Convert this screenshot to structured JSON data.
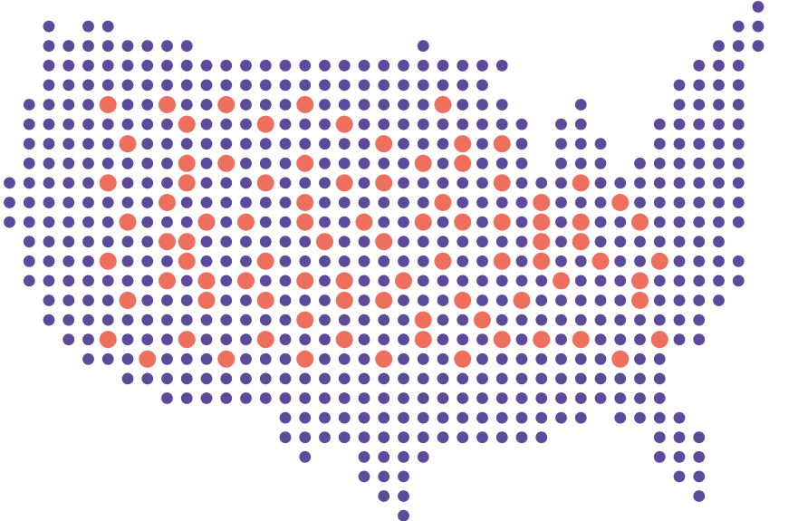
{
  "map": {
    "colors": {
      "base_dot": "#5e4a9b",
      "highlight_dot": "#ee6f5e",
      "background": "#ffffff"
    },
    "rows": [
      {
        "row": 0,
        "cells": [
          38
        ]
      },
      {
        "row": 1,
        "cells": [
          2,
          4,
          5,
          37,
          38
        ]
      },
      {
        "row": 2,
        "cells": [
          2,
          3,
          4,
          5,
          6,
          7,
          8,
          9,
          21,
          36,
          37,
          38
        ]
      },
      {
        "row": 3,
        "cells": [
          2,
          3,
          4,
          5,
          6,
          7,
          8,
          9,
          10,
          11,
          12,
          13,
          14,
          15,
          16,
          17,
          18,
          19,
          20,
          21,
          22,
          23,
          24,
          25,
          35,
          36,
          37
        ]
      },
      {
        "row": 4,
        "cells": [
          2,
          3,
          4,
          5,
          6,
          7,
          8,
          9,
          10,
          11,
          12,
          13,
          14,
          15,
          16,
          17,
          18,
          19,
          20,
          21,
          22,
          23,
          24,
          34,
          35,
          36,
          37
        ]
      },
      {
        "row": 5,
        "cells": [
          1,
          2,
          3,
          4,
          5,
          6,
          7,
          8,
          9,
          10,
          11,
          12,
          13,
          14,
          15,
          16,
          17,
          18,
          19,
          20,
          21,
          22,
          23,
          24,
          25,
          29,
          34,
          35,
          36,
          37
        ]
      },
      {
        "row": 6,
        "cells": [
          1,
          2,
          3,
          4,
          5,
          6,
          7,
          8,
          9,
          10,
          11,
          12,
          13,
          14,
          15,
          16,
          17,
          18,
          19,
          20,
          21,
          22,
          23,
          24,
          25,
          26,
          28,
          29,
          33,
          34,
          35,
          36,
          37
        ]
      },
      {
        "row": 7,
        "cells": [
          1,
          2,
          3,
          4,
          5,
          6,
          7,
          8,
          9,
          10,
          11,
          12,
          13,
          14,
          15,
          16,
          17,
          18,
          19,
          20,
          21,
          22,
          23,
          24,
          25,
          26,
          28,
          29,
          30,
          33,
          34,
          35,
          36,
          37
        ]
      },
      {
        "row": 8,
        "cells": [
          1,
          2,
          3,
          4,
          5,
          6,
          7,
          8,
          9,
          10,
          11,
          12,
          13,
          14,
          15,
          16,
          17,
          18,
          19,
          20,
          21,
          22,
          23,
          24,
          25,
          26,
          28,
          29,
          30,
          32,
          33,
          34,
          35,
          36,
          37
        ]
      },
      {
        "row": 9,
        "cells": [
          0,
          1,
          2,
          3,
          4,
          5,
          6,
          7,
          8,
          9,
          10,
          11,
          12,
          13,
          14,
          15,
          16,
          17,
          18,
          19,
          20,
          21,
          22,
          23,
          24,
          25,
          26,
          27,
          28,
          29,
          30,
          31,
          32,
          33,
          34,
          35,
          36,
          37
        ]
      },
      {
        "row": 10,
        "cells": [
          0,
          1,
          2,
          3,
          4,
          5,
          6,
          7,
          8,
          9,
          10,
          11,
          12,
          13,
          14,
          15,
          16,
          17,
          18,
          19,
          20,
          21,
          22,
          23,
          24,
          25,
          26,
          27,
          28,
          29,
          30,
          31,
          32,
          33,
          34,
          35,
          36,
          37
        ]
      },
      {
        "row": 11,
        "cells": [
          0,
          1,
          2,
          3,
          4,
          5,
          6,
          7,
          8,
          9,
          10,
          11,
          12,
          13,
          14,
          15,
          16,
          17,
          18,
          19,
          20,
          21,
          22,
          23,
          24,
          25,
          26,
          27,
          28,
          29,
          30,
          31,
          32,
          33,
          34,
          35,
          36,
          37
        ]
      },
      {
        "row": 12,
        "cells": [
          1,
          2,
          3,
          4,
          5,
          6,
          7,
          8,
          9,
          10,
          11,
          12,
          13,
          14,
          15,
          16,
          17,
          18,
          19,
          20,
          21,
          22,
          23,
          24,
          25,
          26,
          27,
          28,
          29,
          30,
          31,
          32,
          33,
          34,
          35,
          36
        ]
      },
      {
        "row": 13,
        "cells": [
          1,
          2,
          3,
          4,
          5,
          6,
          7,
          8,
          9,
          10,
          11,
          12,
          13,
          14,
          15,
          16,
          17,
          18,
          19,
          20,
          21,
          22,
          23,
          24,
          25,
          26,
          27,
          28,
          29,
          30,
          31,
          32,
          33,
          34,
          35,
          36,
          37
        ]
      },
      {
        "row": 14,
        "cells": [
          1,
          2,
          3,
          4,
          5,
          6,
          7,
          8,
          9,
          10,
          11,
          12,
          13,
          14,
          15,
          16,
          17,
          18,
          19,
          20,
          21,
          22,
          23,
          24,
          25,
          26,
          27,
          28,
          29,
          30,
          31,
          32,
          33,
          34,
          35,
          36,
          37
        ]
      },
      {
        "row": 15,
        "cells": [
          2,
          3,
          4,
          5,
          6,
          7,
          8,
          9,
          10,
          11,
          12,
          13,
          14,
          15,
          16,
          17,
          18,
          19,
          20,
          21,
          22,
          23,
          24,
          25,
          26,
          27,
          28,
          29,
          30,
          31,
          32,
          33,
          34,
          35,
          36
        ]
      },
      {
        "row": 16,
        "cells": [
          2,
          3,
          4,
          5,
          6,
          7,
          8,
          9,
          10,
          11,
          12,
          13,
          14,
          15,
          16,
          17,
          18,
          19,
          20,
          21,
          22,
          23,
          24,
          25,
          26,
          27,
          28,
          29,
          30,
          31,
          32,
          33,
          34,
          35
        ]
      },
      {
        "row": 17,
        "cells": [
          3,
          4,
          5,
          6,
          7,
          8,
          9,
          10,
          11,
          12,
          13,
          14,
          15,
          16,
          17,
          18,
          19,
          20,
          21,
          22,
          23,
          24,
          25,
          26,
          27,
          28,
          29,
          30,
          31,
          32,
          33,
          34,
          35
        ]
      },
      {
        "row": 18,
        "cells": [
          4,
          5,
          6,
          7,
          8,
          9,
          10,
          11,
          12,
          13,
          14,
          15,
          16,
          17,
          18,
          19,
          20,
          21,
          22,
          23,
          24,
          25,
          26,
          27,
          28,
          29,
          30,
          31,
          32,
          33
        ]
      },
      {
        "row": 19,
        "cells": [
          6,
          7,
          8,
          9,
          10,
          11,
          12,
          13,
          14,
          15,
          16,
          17,
          18,
          19,
          20,
          21,
          22,
          23,
          24,
          25,
          26,
          27,
          28,
          29,
          30,
          31,
          32,
          33
        ]
      },
      {
        "row": 20,
        "cells": [
          8,
          9,
          10,
          11,
          12,
          13,
          14,
          15,
          16,
          17,
          18,
          19,
          20,
          21,
          22,
          23,
          24,
          25,
          26,
          27,
          28,
          29,
          30,
          31,
          32,
          33
        ]
      },
      {
        "row": 21,
        "cells": [
          14,
          15,
          16,
          17,
          18,
          19,
          20,
          21,
          22,
          23,
          24,
          25,
          26,
          27,
          28,
          29,
          31,
          32,
          33,
          34
        ]
      },
      {
        "row": 22,
        "cells": [
          14,
          15,
          16,
          17,
          18,
          19,
          20,
          21,
          22,
          23,
          24,
          25,
          26,
          27,
          33,
          34,
          35
        ]
      },
      {
        "row": 23,
        "cells": [
          15,
          18,
          19,
          20,
          21,
          33,
          34,
          35
        ]
      },
      {
        "row": 24,
        "cells": [
          18,
          19,
          20,
          34,
          35
        ]
      },
      {
        "row": 25,
        "cells": [
          19,
          20,
          35
        ]
      },
      {
        "row": 26,
        "cells": [
          20
        ]
      }
    ],
    "highlights": [
      [
        5,
        5
      ],
      [
        5,
        8
      ],
      [
        5,
        11
      ],
      [
        5,
        15
      ],
      [
        5,
        22
      ],
      [
        6,
        9
      ],
      [
        6,
        13
      ],
      [
        6,
        17
      ],
      [
        7,
        6
      ],
      [
        7,
        19
      ],
      [
        7,
        23
      ],
      [
        7,
        25
      ],
      [
        8,
        9
      ],
      [
        8,
        11
      ],
      [
        8,
        15
      ],
      [
        8,
        21
      ],
      [
        8,
        23
      ],
      [
        9,
        5
      ],
      [
        9,
        9
      ],
      [
        9,
        13
      ],
      [
        9,
        17
      ],
      [
        9,
        19
      ],
      [
        9,
        25
      ],
      [
        9,
        29
      ],
      [
        10,
        8
      ],
      [
        10,
        15
      ],
      [
        10,
        22
      ],
      [
        10,
        27
      ],
      [
        10,
        31
      ],
      [
        11,
        6
      ],
      [
        11,
        10
      ],
      [
        11,
        12
      ],
      [
        11,
        15
      ],
      [
        11,
        18
      ],
      [
        11,
        21
      ],
      [
        11,
        23
      ],
      [
        11,
        25
      ],
      [
        11,
        27
      ],
      [
        11,
        29
      ],
      [
        11,
        32
      ],
      [
        12,
        8
      ],
      [
        12,
        9
      ],
      [
        12,
        16
      ],
      [
        12,
        19
      ],
      [
        12,
        27
      ],
      [
        12,
        29
      ],
      [
        13,
        5
      ],
      [
        13,
        9
      ],
      [
        13,
        13
      ],
      [
        13,
        22
      ],
      [
        13,
        25
      ],
      [
        13,
        27
      ],
      [
        13,
        30
      ],
      [
        13,
        33
      ],
      [
        14,
        8
      ],
      [
        14,
        10
      ],
      [
        14,
        12
      ],
      [
        14,
        15
      ],
      [
        14,
        17
      ],
      [
        14,
        20
      ],
      [
        14,
        28
      ],
      [
        14,
        32
      ],
      [
        15,
        6
      ],
      [
        15,
        10
      ],
      [
        15,
        13
      ],
      [
        15,
        17
      ],
      [
        15,
        19
      ],
      [
        15,
        23
      ],
      [
        15,
        26
      ],
      [
        15,
        32
      ],
      [
        16,
        15
      ],
      [
        16,
        21
      ],
      [
        16,
        24
      ],
      [
        17,
        5
      ],
      [
        17,
        9
      ],
      [
        17,
        13
      ],
      [
        17,
        17
      ],
      [
        17,
        21
      ],
      [
        17,
        25
      ],
      [
        17,
        27
      ],
      [
        17,
        29
      ],
      [
        17,
        33
      ],
      [
        18,
        7
      ],
      [
        18,
        11
      ],
      [
        18,
        15
      ],
      [
        18,
        19
      ],
      [
        18,
        23
      ],
      [
        18,
        31
      ]
    ]
  }
}
